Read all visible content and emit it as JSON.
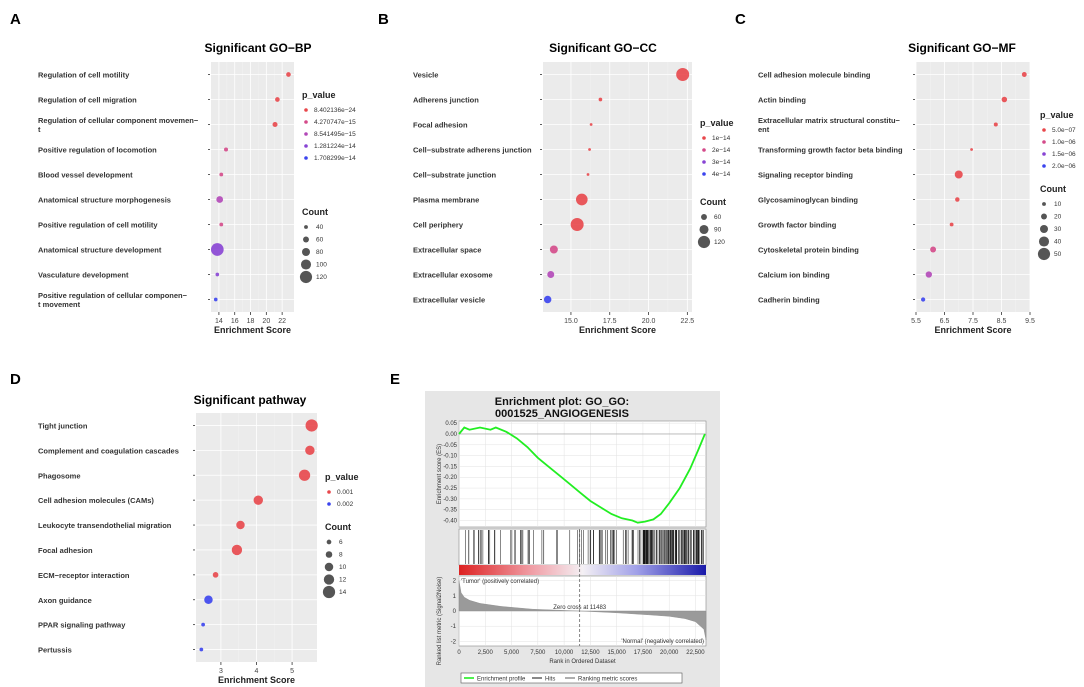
{
  "panel_labels": [
    "A",
    "B",
    "C",
    "D",
    "E"
  ],
  "chart_data": [
    {
      "id": "A",
      "type": "scatter",
      "title": "Significant GO−BP",
      "xlabel": "Enrichment Score",
      "ylabel": "",
      "xlim": [
        13,
        23.5
      ],
      "xticks": [
        14,
        16,
        18,
        20,
        22
      ],
      "categories": [
        [
          "Regulation of cell motility"
        ],
        [
          "Regulation of cell migration"
        ],
        [
          "Regulation of cellular component movemen−",
          "t"
        ],
        [
          "Positive regulation of locomotion"
        ],
        [
          "Blood vessel development"
        ],
        [
          "Anatomical structure morphogenesis"
        ],
        [
          "Positive regulation of cell motility"
        ],
        [
          "Anatomical structure development"
        ],
        [
          "Vasculature development"
        ],
        [
          "Positive regulation of cellular componen−",
          "t movement"
        ]
      ],
      "x": [
        22.8,
        21.4,
        21.1,
        14.9,
        14.3,
        14.1,
        14.3,
        13.8,
        13.8,
        13.6
      ],
      "count": [
        48,
        48,
        52,
        42,
        40,
        68,
        40,
        125,
        38,
        38
      ],
      "pvalue_level": [
        0,
        0,
        0,
        1,
        1,
        2,
        1,
        3,
        3,
        4
      ],
      "legend_color_title": "p_value",
      "legend_color_items": [
        "8.402136e−24",
        "4.270747e−15",
        "8.541495e−15",
        "1.281224e−14",
        "1.708299e−14"
      ],
      "legend_size_title": "Count",
      "legend_size_items": [
        40,
        60,
        80,
        100,
        120
      ],
      "size_range": [
        30,
        130
      ]
    },
    {
      "id": "B",
      "type": "scatter",
      "title": "Significant GO−CC",
      "xlabel": "Enrichment Score",
      "ylabel": "",
      "xlim": [
        13.2,
        22.8
      ],
      "xticks": [
        15.0,
        17.5,
        20.0,
        22.5
      ],
      "xtick_labels": [
        "15.0",
        "17.5",
        "20.0",
        "22.5"
      ],
      "categories": [
        [
          "Vesicle"
        ],
        [
          "Adherens junction"
        ],
        [
          "Focal adhesion"
        ],
        [
          "Cell−substrate adherens junction"
        ],
        [
          "Cell−substrate junction"
        ],
        [
          "Plasma membrane"
        ],
        [
          "Cell periphery"
        ],
        [
          "Extracellular space"
        ],
        [
          "Extracellular exosome"
        ],
        [
          "Extracellular vesicle"
        ]
      ],
      "x": [
        22.2,
        16.9,
        16.3,
        16.2,
        16.1,
        15.7,
        15.4,
        13.9,
        13.7,
        13.5
      ],
      "count": [
        128,
        38,
        30,
        30,
        30,
        115,
        128,
        80,
        70,
        75
      ],
      "pvalue_level": [
        0,
        0,
        0,
        0,
        0,
        0,
        0,
        1,
        2,
        3
      ],
      "legend_color_title": "p_value",
      "legend_color_items": [
        "1e−14",
        "2e−14",
        "3e−14",
        "4e−14"
      ],
      "legend_size_title": "Count",
      "legend_size_items": [
        60,
        90,
        120
      ],
      "size_range": [
        30,
        130
      ]
    },
    {
      "id": "C",
      "type": "scatter",
      "title": "Significant GO−MF",
      "xlabel": "Enrichment Score",
      "ylabel": "",
      "xlim": [
        5.5,
        9.5
      ],
      "xticks": [
        5.5,
        6.5,
        7.5,
        8.5,
        9.5
      ],
      "xtick_labels": [
        "5.5",
        "6.5",
        "7.5",
        "8.5",
        "9.5"
      ],
      "categories": [
        [
          "Cell adhesion molecule binding"
        ],
        [
          "Actin binding"
        ],
        [
          "Extracellular matrix structural constitu−",
          "ent"
        ],
        [
          "Transforming growth factor beta binding"
        ],
        [
          "Signaling receptor binding"
        ],
        [
          "Glycosaminoglycan binding"
        ],
        [
          "Growth factor binding"
        ],
        [
          "Cytoskeletal protein binding"
        ],
        [
          "Calcium ion binding"
        ],
        [
          "Cadherin binding"
        ]
      ],
      "x": [
        9.3,
        8.6,
        8.3,
        7.45,
        7.0,
        6.95,
        6.75,
        6.1,
        5.95,
        5.75
      ],
      "count": [
        15,
        18,
        11,
        5,
        30,
        13,
        10,
        20,
        22,
        12
      ],
      "pvalue_level": [
        0,
        0,
        0,
        0,
        0,
        0,
        0,
        1,
        2,
        3
      ],
      "legend_color_title": "p_value",
      "legend_color_items": [
        "5.0e−07",
        "1.0e−06",
        "1.5e−06",
        "2.0e−06"
      ],
      "legend_size_title": "Count",
      "legend_size_items": [
        10,
        20,
        30,
        40,
        50
      ],
      "size_range": [
        5,
        55
      ]
    },
    {
      "id": "D",
      "type": "scatter",
      "title": "Significant pathway",
      "xlabel": "Enrichment Score",
      "ylabel": "",
      "xlim": [
        2.3,
        5.7
      ],
      "xticks": [
        3,
        4,
        5
      ],
      "categories": [
        [
          "Tight junction"
        ],
        [
          "Complement and coagulation cascades"
        ],
        [
          "Phagosome"
        ],
        [
          "Cell adhesion molecules (CAMs)"
        ],
        [
          "Leukocyte transendothelial migration"
        ],
        [
          "Focal adhesion"
        ],
        [
          "ECM−receptor interaction"
        ],
        [
          "Axon guidance"
        ],
        [
          "PPAR signaling pathway"
        ],
        [
          "Pertussis"
        ]
      ],
      "x": [
        5.55,
        5.5,
        5.35,
        4.05,
        3.55,
        3.45,
        2.85,
        2.65,
        2.5,
        2.45
      ],
      "count": [
        14,
        11,
        13,
        11,
        10,
        12,
        7,
        10,
        5,
        5
      ],
      "pvalue_level": [
        0,
        0,
        0,
        0,
        0,
        0,
        0,
        1,
        1,
        1
      ],
      "legend_color_title": "p_value",
      "legend_color_items": [
        "0.001",
        "0.002"
      ],
      "legend_size_title": "Count",
      "legend_size_items": [
        6,
        8,
        10,
        12,
        14
      ],
      "size_range": [
        4,
        15
      ]
    },
    {
      "id": "E",
      "type": "line",
      "title": "Enrichment plot: GO_GO:",
      "title_line2": "0001525_ANGIOGENESIS",
      "ylabel": "Enrichment score (ES)",
      "ylabel2": "Ranked list metric (Signal2Noise)",
      "xlabel": "Rank in Ordered Dataset",
      "x_max": 23500,
      "xticks": [
        0,
        2500,
        5000,
        7500,
        10000,
        12500,
        15000,
        17500,
        20000,
        22500
      ],
      "xtick_labels": [
        "0",
        "2,500",
        "5,000",
        "7,500",
        "10,000",
        "12,500",
        "15,000",
        "17,500",
        "20,000",
        "22,500"
      ],
      "es_ylim": [
        -0.43,
        0.06
      ],
      "es_yticks": [
        0.05,
        0.0,
        -0.05,
        -0.1,
        -0.15,
        -0.2,
        -0.25,
        -0.3,
        -0.35,
        -0.4
      ],
      "es_ytick_labels": [
        "0.05",
        "0.00",
        "-0.05",
        "-0.10",
        "-0.15",
        "-0.20",
        "-0.25",
        "-0.30",
        "-0.35",
        "-0.40"
      ],
      "es_x": [
        0,
        500,
        1000,
        2000,
        3000,
        3500,
        4500,
        5500,
        6500,
        7500,
        8500,
        9500,
        10500,
        11500,
        12500,
        13500,
        14500,
        15500,
        16500,
        17000,
        17700,
        18500,
        19200,
        20000,
        21000,
        22000,
        22800,
        23400
      ],
      "es_y": [
        0.0,
        0.03,
        0.02,
        0.03,
        0.02,
        0.03,
        0.01,
        -0.02,
        -0.06,
        -0.11,
        -0.15,
        -0.19,
        -0.23,
        -0.27,
        -0.31,
        -0.34,
        -0.37,
        -0.39,
        -0.4,
        -0.41,
        -0.405,
        -0.395,
        -0.37,
        -0.32,
        -0.25,
        -0.16,
        -0.07,
        0.0
      ],
      "metric_ylim": [
        -2.3,
        2.3
      ],
      "metric_yticks": [
        2,
        1,
        0,
        -1,
        -2
      ],
      "metric_x": [
        0,
        200,
        500,
        1000,
        2000,
        4000,
        7000,
        11483,
        15000,
        18000,
        20000,
        21500,
        22500,
        23300,
        23500
      ],
      "metric_y": [
        2.0,
        1.2,
        0.9,
        0.7,
        0.5,
        0.3,
        0.12,
        0.0,
        -0.12,
        -0.25,
        -0.35,
        -0.5,
        -0.7,
        -1.2,
        -1.9
      ],
      "zero_cross_label": "Zero cross at 11483",
      "zero_cross_x": 11483,
      "tumor_label": "'Tumor' (positively correlated)",
      "normal_label": "'Normal' (negatively correlated)",
      "legend_items": [
        "Enrichment profile",
        "Hits",
        "Ranking metric scores"
      ]
    }
  ],
  "colors": {
    "p_levels": [
      "#e8474b",
      "#d44a8a",
      "#b248b8",
      "#8844d4",
      "#3b44ee"
    ],
    "es_line": "#22ee22",
    "tumor_label": "#dd2222",
    "normal_label": "#2233cc"
  }
}
